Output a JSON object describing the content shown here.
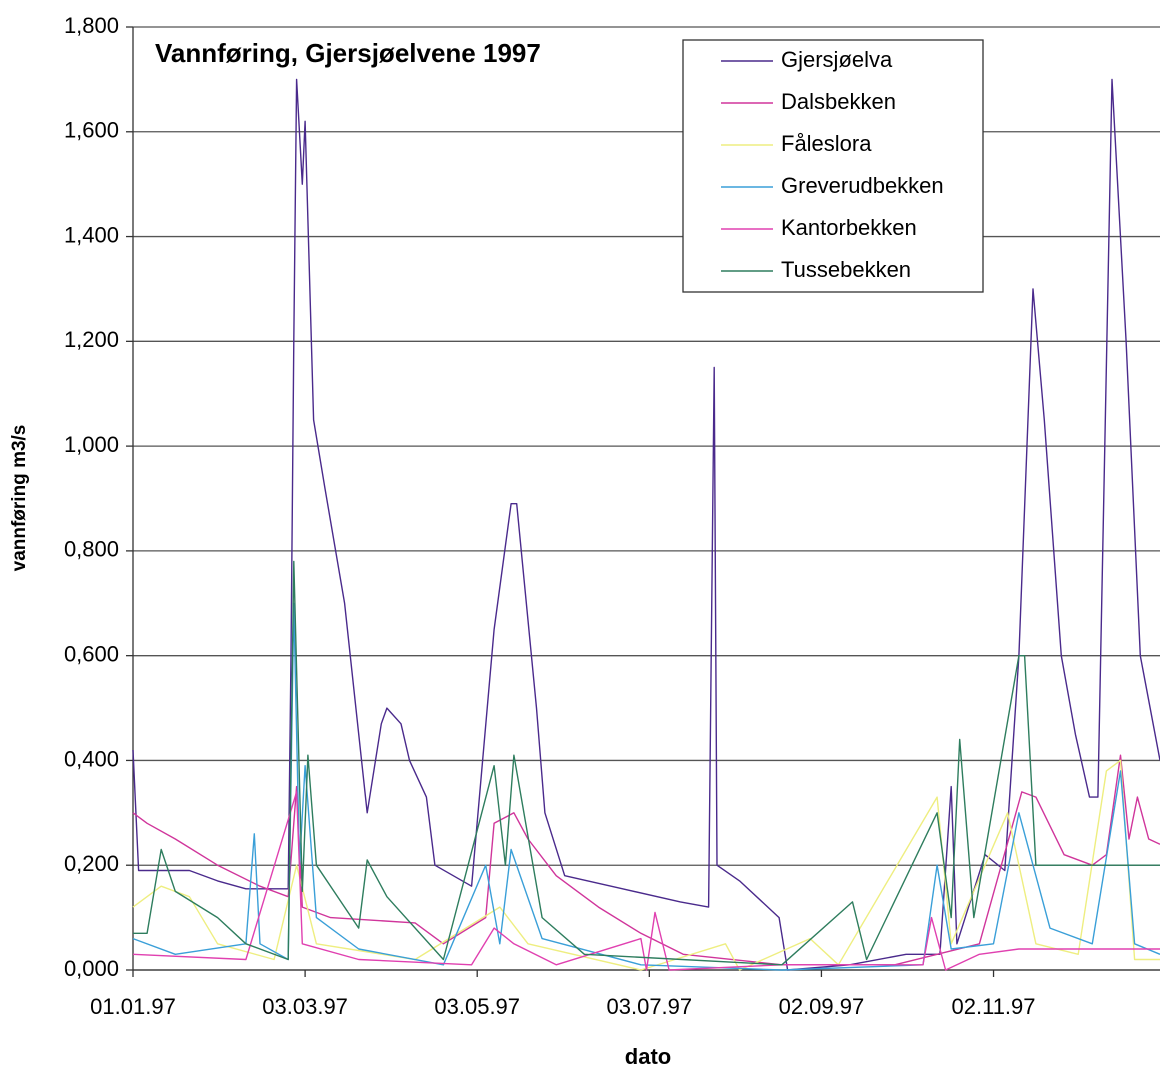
{
  "chart_data": {
    "type": "line",
    "title": "Vannføring, Gjersjøelvene 1997",
    "x_label": "dato",
    "y_label": "vannføring m3/s",
    "xlim": [
      "1997-01-01",
      "1997-12-31"
    ],
    "xticks": [
      {
        "value": "1997-01-01",
        "label": "01.01.97"
      },
      {
        "value": "1997-03-03",
        "label": "03.03.97"
      },
      {
        "value": "1997-05-03",
        "label": "03.05.97"
      },
      {
        "value": "1997-07-03",
        "label": "03.07.97"
      },
      {
        "value": "1997-09-02",
        "label": "02.09.97"
      },
      {
        "value": "1997-11-02",
        "label": "02.11.97"
      }
    ],
    "ylim": [
      0,
      1.8
    ],
    "yticks": [
      {
        "value": 0,
        "label": "0,000"
      },
      {
        "value": 0.2,
        "label": "0,200"
      },
      {
        "value": 0.4,
        "label": "0,400"
      },
      {
        "value": 0.6,
        "label": "0,600"
      },
      {
        "value": 0.8,
        "label": "0,800"
      },
      {
        "value": 1.0,
        "label": "1,000"
      },
      {
        "value": 1.2,
        "label": "1,200"
      },
      {
        "value": 1.4,
        "label": "1,400"
      },
      {
        "value": 1.6,
        "label": "1,600"
      },
      {
        "value": 1.8,
        "label": "1,800"
      }
    ],
    "grid": true,
    "legend": "top-right",
    "series": [
      {
        "name": "Gjersjøelva",
        "color": "#4a2a8c",
        "x": [
          "1997-01-01",
          "1997-01-03",
          "1997-01-21",
          "1997-01-31",
          "1997-02-10",
          "1997-02-25",
          "1997-02-26",
          "1997-02-27",
          "1997-02-28",
          "1997-03-02",
          "1997-03-03",
          "1997-03-06",
          "1997-03-10",
          "1997-03-17",
          "1997-03-25",
          "1997-03-30",
          "1997-04-01",
          "1997-04-06",
          "1997-04-09",
          "1997-04-15",
          "1997-04-18",
          "1997-05-01",
          "1997-05-09",
          "1997-05-15",
          "1997-05-17",
          "1997-05-24",
          "1997-05-27",
          "1997-06-03",
          "1997-07-14",
          "1997-07-24",
          "1997-07-26",
          "1997-07-27",
          "1997-08-04",
          "1997-08-18",
          "1997-08-21",
          "1997-09-12",
          "1997-10-02",
          "1997-10-14",
          "1997-10-18",
          "1997-10-20",
          "1997-10-30",
          "1997-11-06",
          "1997-11-11",
          "1997-11-16",
          "1997-11-20",
          "1997-11-26",
          "1997-12-01",
          "1997-12-06",
          "1997-12-09",
          "1997-12-14",
          "1997-12-19",
          "1997-12-24",
          "1997-12-31"
        ],
        "values": [
          0.42,
          0.19,
          0.19,
          0.17,
          0.155,
          0.155,
          0.6,
          1.2,
          1.7,
          1.5,
          1.62,
          1.05,
          0.92,
          0.7,
          0.3,
          0.47,
          0.5,
          0.47,
          0.4,
          0.33,
          0.2,
          0.16,
          0.65,
          0.89,
          0.89,
          0.5,
          0.3,
          0.18,
          0.13,
          0.12,
          1.15,
          0.2,
          0.17,
          0.1,
          0.0,
          0.01,
          0.03,
          0.03,
          0.35,
          0.05,
          0.22,
          0.19,
          0.6,
          1.3,
          1.05,
          0.6,
          0.45,
          0.33,
          0.33,
          1.7,
          1.2,
          0.6,
          0.4
        ]
      },
      {
        "name": "Dalsbekken",
        "color": "#d0359b",
        "x": [
          "1997-01-01",
          "1997-01-06",
          "1997-01-16",
          "1997-01-31",
          "1997-02-15",
          "1997-02-25",
          "1997-02-28",
          "1997-03-02",
          "1997-03-12",
          "1997-04-11",
          "1997-04-21",
          "1997-05-06",
          "1997-05-09",
          "1997-05-16",
          "1997-05-21",
          "1997-05-31",
          "1997-06-15",
          "1997-06-30",
          "1997-07-15",
          "1997-08-19",
          "1997-09-28",
          "1997-10-28",
          "1997-11-12",
          "1997-11-17",
          "1997-11-27",
          "1997-12-07",
          "1997-12-12",
          "1997-12-17",
          "1997-12-20",
          "1997-12-23",
          "1997-12-27",
          "1997-12-31"
        ],
        "values": [
          0.3,
          0.28,
          0.25,
          0.2,
          0.16,
          0.14,
          0.35,
          0.12,
          0.1,
          0.09,
          0.05,
          0.1,
          0.28,
          0.3,
          0.25,
          0.18,
          0.12,
          0.07,
          0.03,
          0.01,
          0.01,
          0.05,
          0.34,
          0.33,
          0.22,
          0.2,
          0.22,
          0.41,
          0.25,
          0.33,
          0.25,
          0.24
        ]
      },
      {
        "name": "Fåleslora",
        "color": "#eeee80",
        "x": [
          "1997-01-01",
          "1997-01-11",
          "1997-01-21",
          "1997-01-31",
          "1997-02-20",
          "1997-02-28",
          "1997-03-07",
          "1997-04-11",
          "1997-05-11",
          "1997-05-21",
          "1997-06-30",
          "1997-07-30",
          "1997-08-04",
          "1997-08-29",
          "1997-09-08",
          "1997-10-13",
          "1997-10-18",
          "1997-11-07",
          "1997-11-17",
          "1997-12-02",
          "1997-12-12",
          "1997-12-17",
          "1997-12-22",
          "1997-12-31"
        ],
        "values": [
          0.12,
          0.16,
          0.14,
          0.05,
          0.02,
          0.2,
          0.05,
          0.02,
          0.12,
          0.05,
          0.0,
          0.05,
          0.0,
          0.06,
          0.01,
          0.33,
          0.05,
          0.3,
          0.05,
          0.03,
          0.38,
          0.4,
          0.02,
          0.02
        ]
      },
      {
        "name": "Greverudbekken",
        "color": "#3a9fd8",
        "x": [
          "1997-01-01",
          "1997-01-16",
          "1997-02-10",
          "1997-02-13",
          "1997-02-15",
          "1997-02-25",
          "1997-02-27",
          "1997-03-01",
          "1997-03-03",
          "1997-03-07",
          "1997-03-22",
          "1997-04-21",
          "1997-05-06",
          "1997-05-11",
          "1997-05-15",
          "1997-05-26",
          "1997-06-30",
          "1997-08-19",
          "1997-10-08",
          "1997-10-13",
          "1997-10-18",
          "1997-11-02",
          "1997-11-11",
          "1997-11-22",
          "1997-12-07",
          "1997-12-17",
          "1997-12-22",
          "1997-12-31"
        ],
        "values": [
          0.06,
          0.03,
          0.05,
          0.26,
          0.05,
          0.02,
          0.7,
          0.2,
          0.39,
          0.1,
          0.04,
          0.01,
          0.2,
          0.05,
          0.23,
          0.06,
          0.01,
          0.0,
          0.01,
          0.2,
          0.04,
          0.05,
          0.3,
          0.08,
          0.05,
          0.38,
          0.05,
          0.03
        ]
      },
      {
        "name": "Kantorbekken",
        "color": "#e040b0",
        "x": [
          "1997-01-01",
          "1997-02-10",
          "1997-02-28",
          "1997-03-02",
          "1997-03-22",
          "1997-05-01",
          "1997-05-09",
          "1997-05-16",
          "1997-05-31",
          "1997-06-30",
          "1997-07-02",
          "1997-07-05",
          "1997-07-10",
          "1997-08-19",
          "1997-10-08",
          "1997-10-11",
          "1997-10-16",
          "1997-10-28",
          "1997-11-11",
          "1997-12-31"
        ],
        "values": [
          0.03,
          0.02,
          0.34,
          0.05,
          0.02,
          0.01,
          0.08,
          0.05,
          0.01,
          0.06,
          0.0,
          0.11,
          0.0,
          0.01,
          0.01,
          0.1,
          0.0,
          0.03,
          0.04,
          0.04
        ]
      },
      {
        "name": "Tussebekken",
        "color": "#2e7d5e",
        "x": [
          "1997-01-01",
          "1997-01-06",
          "1997-01-11",
          "1997-01-16",
          "1997-01-31",
          "1997-02-10",
          "1997-02-25",
          "1997-02-27",
          "1997-03-02",
          "1997-03-04",
          "1997-03-07",
          "1997-03-22",
          "1997-03-25",
          "1997-04-01",
          "1997-04-21",
          "1997-05-09",
          "1997-05-13",
          "1997-05-16",
          "1997-05-26",
          "1997-06-10",
          "1997-08-19",
          "1997-09-13",
          "1997-09-18",
          "1997-10-13",
          "1997-10-18",
          "1997-10-21",
          "1997-10-26",
          "1997-11-11",
          "1997-11-13",
          "1997-11-17",
          "1997-12-31"
        ],
        "values": [
          0.07,
          0.07,
          0.23,
          0.15,
          0.1,
          0.05,
          0.02,
          0.78,
          0.15,
          0.41,
          0.2,
          0.08,
          0.21,
          0.14,
          0.02,
          0.39,
          0.2,
          0.41,
          0.1,
          0.03,
          0.01,
          0.13,
          0.02,
          0.3,
          0.1,
          0.44,
          0.1,
          0.6,
          0.6,
          0.2,
          0.2
        ]
      }
    ]
  }
}
